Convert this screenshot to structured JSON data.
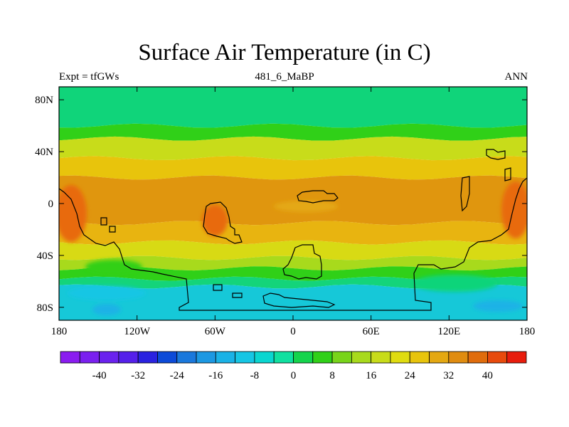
{
  "title": "Surface Air Temperature (in C)",
  "subtitle_left": "Expt = tfGWs",
  "subtitle_center": "481_6_MaBP",
  "subtitle_right": "ANN",
  "lat_ticks": [
    {
      "label": "80N",
      "lat": 80
    },
    {
      "label": "40N",
      "lat": 40
    },
    {
      "label": "0",
      "lat": 0
    },
    {
      "label": "40S",
      "lat": -40
    },
    {
      "label": "80S",
      "lat": -80
    }
  ],
  "lon_ticks": [
    {
      "label": "180",
      "lon": -180
    },
    {
      "label": "120W",
      "lon": -120
    },
    {
      "label": "60W",
      "lon": -60
    },
    {
      "label": "0",
      "lon": 0
    },
    {
      "label": "60E",
      "lon": 60
    },
    {
      "label": "120E",
      "lon": 120
    },
    {
      "label": "180",
      "lon": 180
    }
  ],
  "colorbar": {
    "colors": [
      "#8a1cf0",
      "#7a20ef",
      "#6a22ee",
      "#5520ea",
      "#2a22e0",
      "#0c4ad8",
      "#1a78dc",
      "#1c98e2",
      "#1ab2e6",
      "#16c6e4",
      "#0ad6d0",
      "#10e0a0",
      "#14d44c",
      "#30d018",
      "#78d41a",
      "#a8da1c",
      "#c8dc1a",
      "#e0dc10",
      "#e8c40c",
      "#e4a812",
      "#e08c10",
      "#e06c0c",
      "#e84a0c",
      "#e81c0c"
    ],
    "labels": [
      {
        "text": "-40",
        "value": -40
      },
      {
        "text": "-32",
        "value": -32
      },
      {
        "text": "-24",
        "value": -24
      },
      {
        "text": "-16",
        "value": -16
      },
      {
        "text": "-8",
        "value": -8
      },
      {
        "text": "0",
        "value": 0
      },
      {
        "text": "8",
        "value": 8
      },
      {
        "text": "16",
        "value": 16
      },
      {
        "text": "24",
        "value": 24
      },
      {
        "text": "32",
        "value": 32
      },
      {
        "text": "40",
        "value": 40
      }
    ]
  },
  "temperature_bands": [
    {
      "lat_from": 90,
      "lat_to": 60,
      "color": "#10d47a"
    },
    {
      "lat_from": 60,
      "lat_to": 50,
      "color": "#30d018"
    },
    {
      "lat_from": 50,
      "lat_to": 35,
      "color": "#c8dc1a"
    },
    {
      "lat_from": 35,
      "lat_to": 20,
      "color": "#e8c40c"
    },
    {
      "lat_from": 20,
      "lat_to": -15,
      "color": "#e0960e"
    },
    {
      "lat_from": -15,
      "lat_to": -30,
      "color": "#e8b410"
    },
    {
      "lat_from": -30,
      "lat_to": -42,
      "color": "#d8da14"
    },
    {
      "lat_from": -42,
      "lat_to": -50,
      "color": "#a8da1c"
    },
    {
      "lat_from": -50,
      "lat_to": -58,
      "color": "#30d018"
    },
    {
      "lat_from": -58,
      "lat_to": -64,
      "color": "#14d47a"
    },
    {
      "lat_from": -64,
      "lat_to": -90,
      "color": "#16c8d8"
    }
  ]
}
